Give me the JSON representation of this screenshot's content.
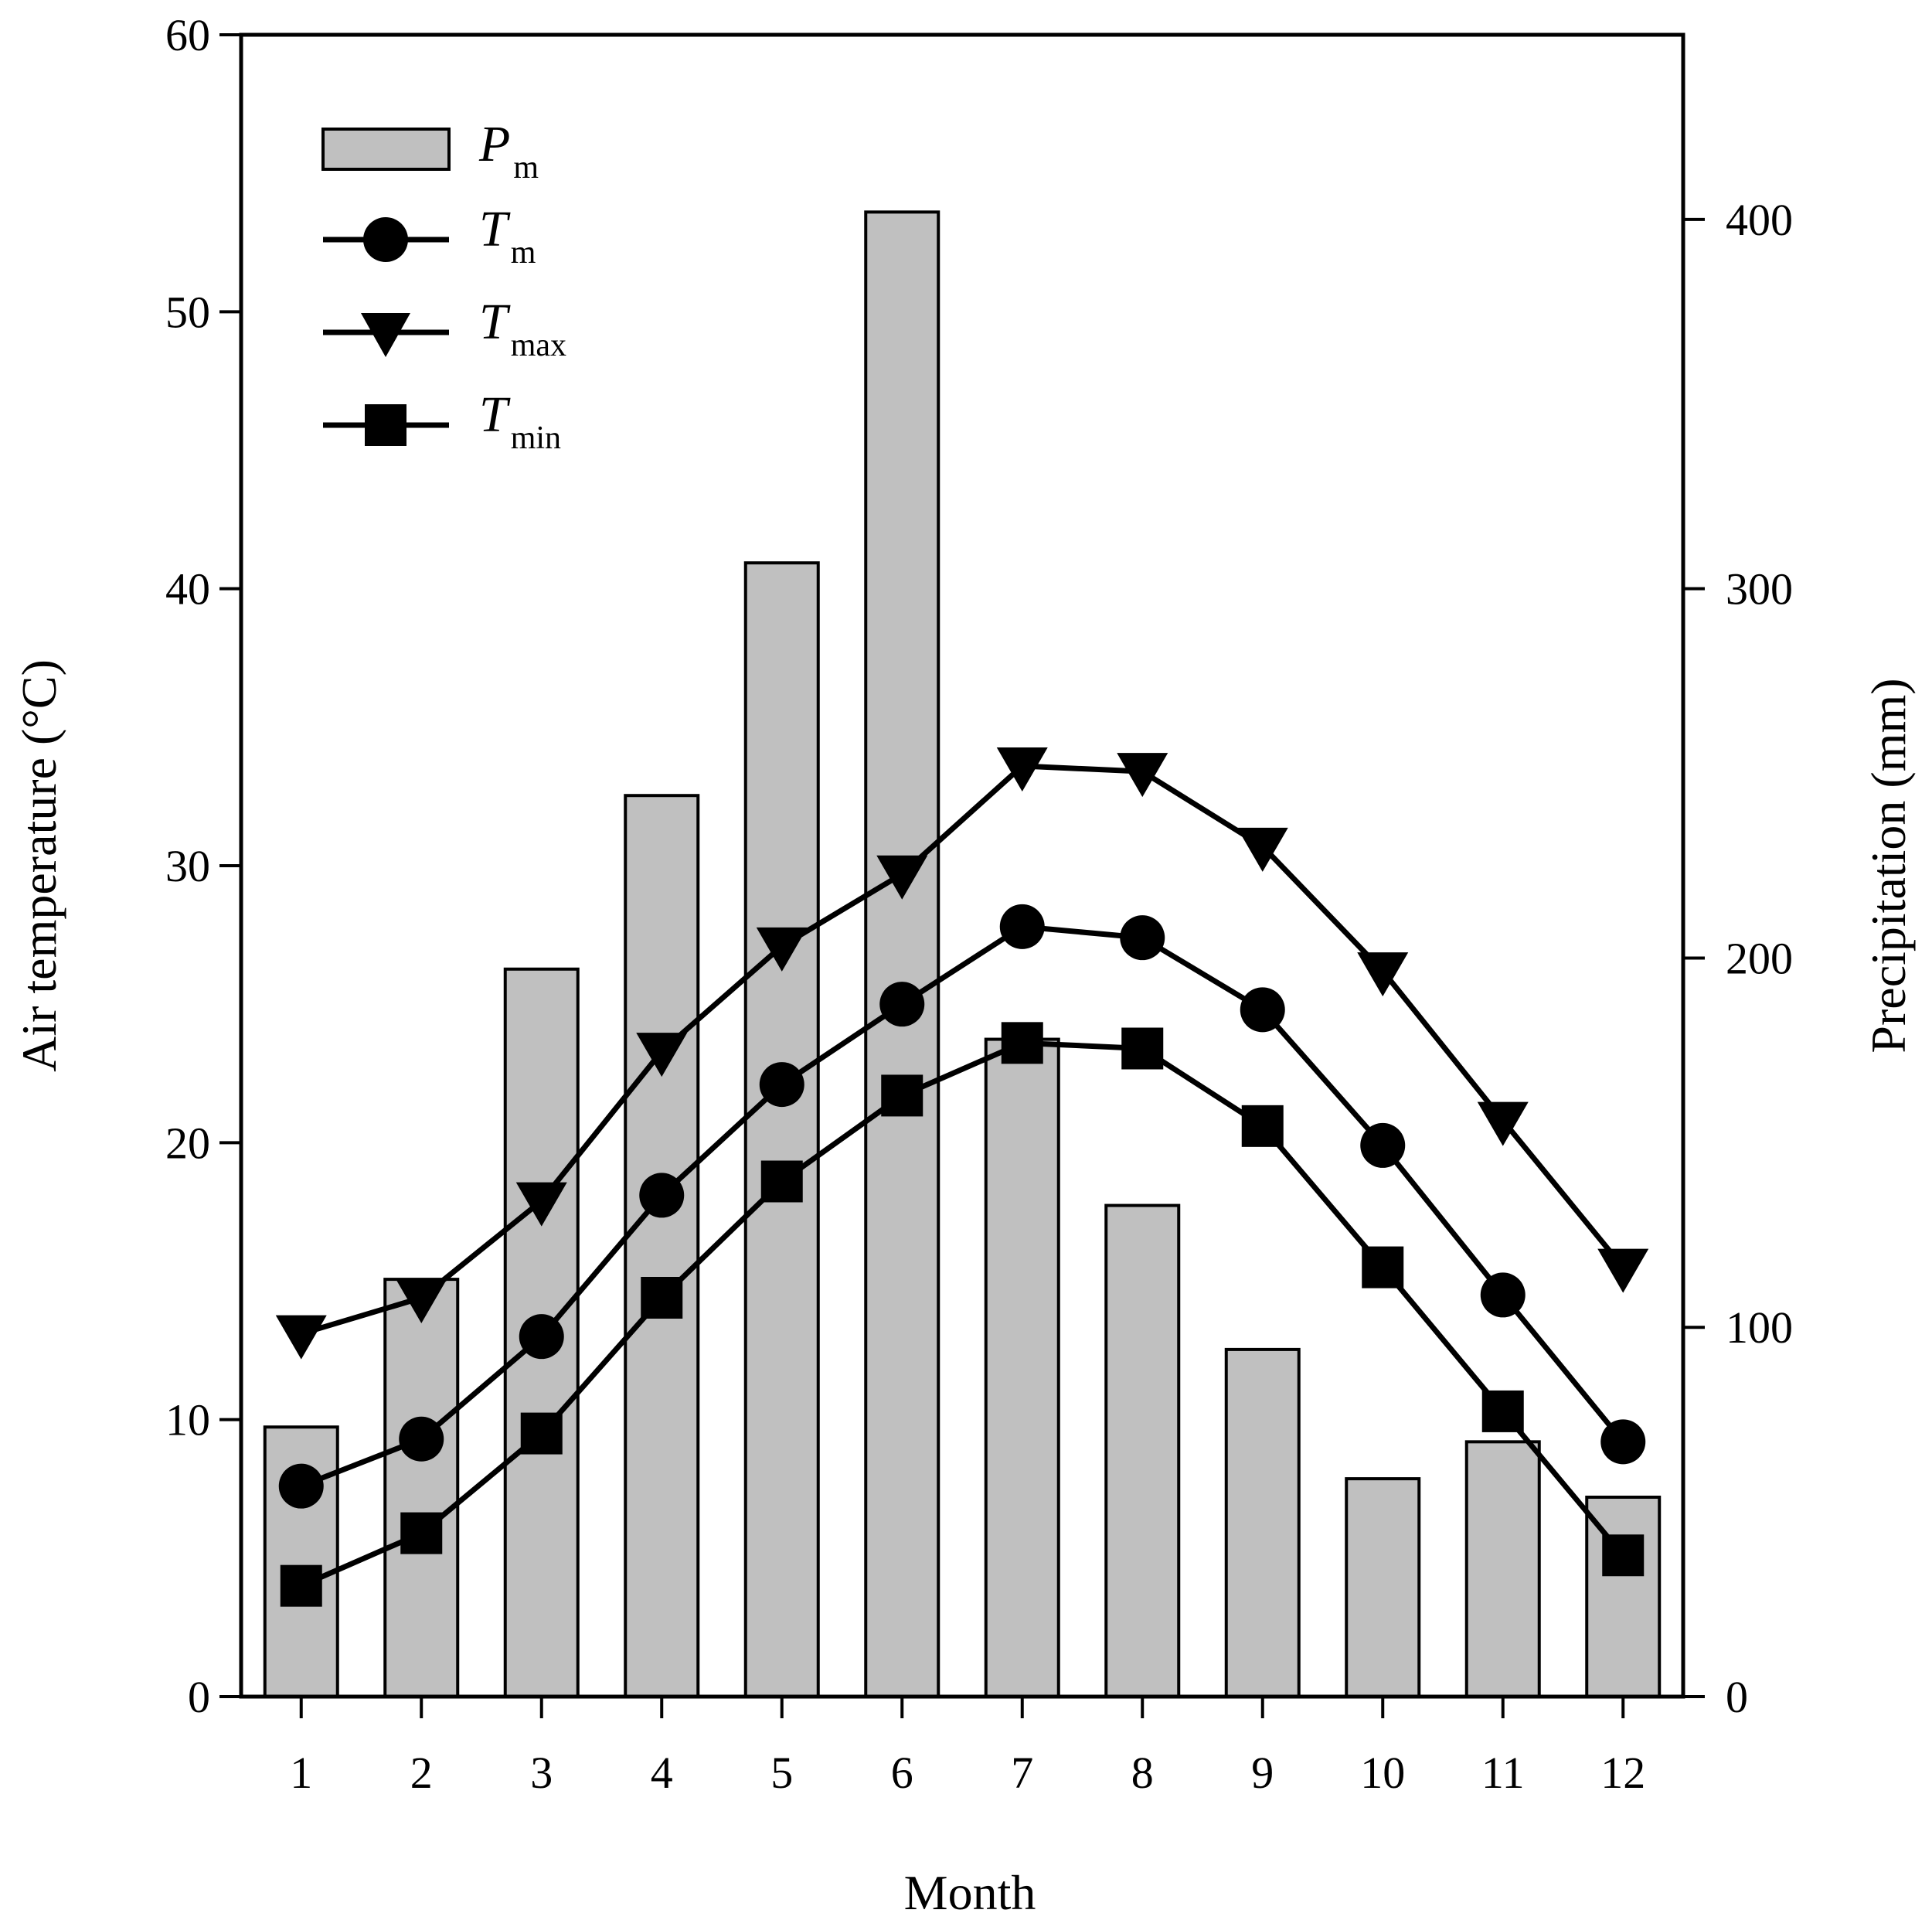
{
  "chart_data": {
    "type": "bar+line",
    "xlabel": "Month",
    "ylabel_left": "Air temperature (°C)",
    "ylabel_right": "Precipitation (mm)",
    "categories": [
      "1",
      "2",
      "3",
      "4",
      "5",
      "6",
      "7",
      "8",
      "9",
      "10",
      "11",
      "12"
    ],
    "ylim_left": [
      0,
      60
    ],
    "ylim_right": [
      0,
      450
    ],
    "yticks_left": [
      "0",
      "10",
      "20",
      "30",
      "40",
      "50",
      "60"
    ],
    "yticks_right": [
      "0",
      "100",
      "200",
      "300",
      "400"
    ],
    "grid": false,
    "legend_position": "top-left",
    "bar_color": "#c0c0c0",
    "line_color": "#000000",
    "bars": {
      "name": "Pm",
      "label_main": "P",
      "label_sub": "m",
      "axis": "right",
      "values": [
        73,
        113,
        197,
        244,
        307,
        402,
        178,
        133,
        94,
        59,
        69,
        54
      ]
    },
    "series": [
      {
        "name": "Tm",
        "label_main": "T",
        "label_sub": "m",
        "marker": "circle",
        "axis": "left",
        "values": [
          7.6,
          9.3,
          13.0,
          18.1,
          22.1,
          25.0,
          27.8,
          27.4,
          24.8,
          19.9,
          14.5,
          9.2
        ]
      },
      {
        "name": "Tmax",
        "label_main": "T",
        "label_sub": "max",
        "marker": "triangle-down",
        "axis": "left",
        "values": [
          13.1,
          14.4,
          17.9,
          23.3,
          27.1,
          29.7,
          33.6,
          33.4,
          30.7,
          26.2,
          20.8,
          15.5
        ]
      },
      {
        "name": "Tmin",
        "label_main": "T",
        "label_sub": "min",
        "marker": "square",
        "axis": "left",
        "values": [
          4.0,
          5.9,
          9.5,
          14.4,
          18.6,
          21.7,
          23.6,
          23.4,
          20.6,
          15.5,
          10.3,
          5.1
        ]
      }
    ]
  }
}
